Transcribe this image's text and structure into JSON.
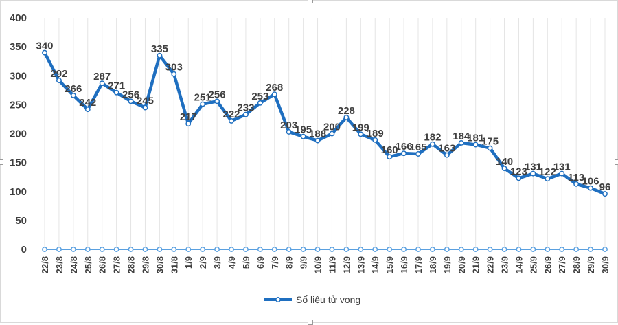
{
  "chart_data": {
    "type": "line",
    "title": "",
    "xlabel": "",
    "ylabel": "",
    "ylim": [
      0,
      400
    ],
    "yticks": [
      "0",
      "50",
      "100",
      "150",
      "200",
      "250",
      "300",
      "350",
      "400"
    ],
    "grid": "vertical",
    "legend_position": "bottom",
    "categories": [
      "22/8",
      "23/8",
      "24/8",
      "25/8",
      "26/8",
      "27/8",
      "28/8",
      "29/8",
      "30/8",
      "31/8",
      "1/9",
      "2/9",
      "3/9",
      "4/9",
      "5/9",
      "6/9",
      "7/9",
      "8/9",
      "9/9",
      "10/9",
      "11/9",
      "12/9",
      "13/9",
      "14/9",
      "15/9",
      "16/9",
      "17/9",
      "18/9",
      "19/9",
      "20/9",
      "21/9",
      "22/9",
      "23/9",
      "14/9",
      "25/9",
      "26/9",
      "27/9",
      "28/9",
      "29/9",
      "30/9"
    ],
    "series": [
      {
        "name": "Số liệu tử vong",
        "color": "#1f6fc0",
        "values": [
          340,
          292,
          266,
          242,
          287,
          271,
          256,
          245,
          335,
          303,
          217,
          251,
          256,
          222,
          233,
          253,
          268,
          203,
          195,
          188,
          200,
          228,
          199,
          189,
          160,
          166,
          165,
          182,
          163,
          184,
          181,
          175,
          140,
          123,
          131,
          122,
          131,
          113,
          106,
          96
        ]
      },
      {
        "name": "",
        "color": "#5aa0e0",
        "values": [
          0,
          0,
          0,
          0,
          0,
          0,
          0,
          0,
          0,
          0,
          0,
          0,
          0,
          0,
          0,
          0,
          0,
          0,
          0,
          0,
          0,
          0,
          0,
          0,
          0,
          0,
          0,
          0,
          0,
          0,
          0,
          0,
          0,
          0,
          0,
          0,
          0,
          0,
          0,
          0
        ]
      }
    ]
  }
}
